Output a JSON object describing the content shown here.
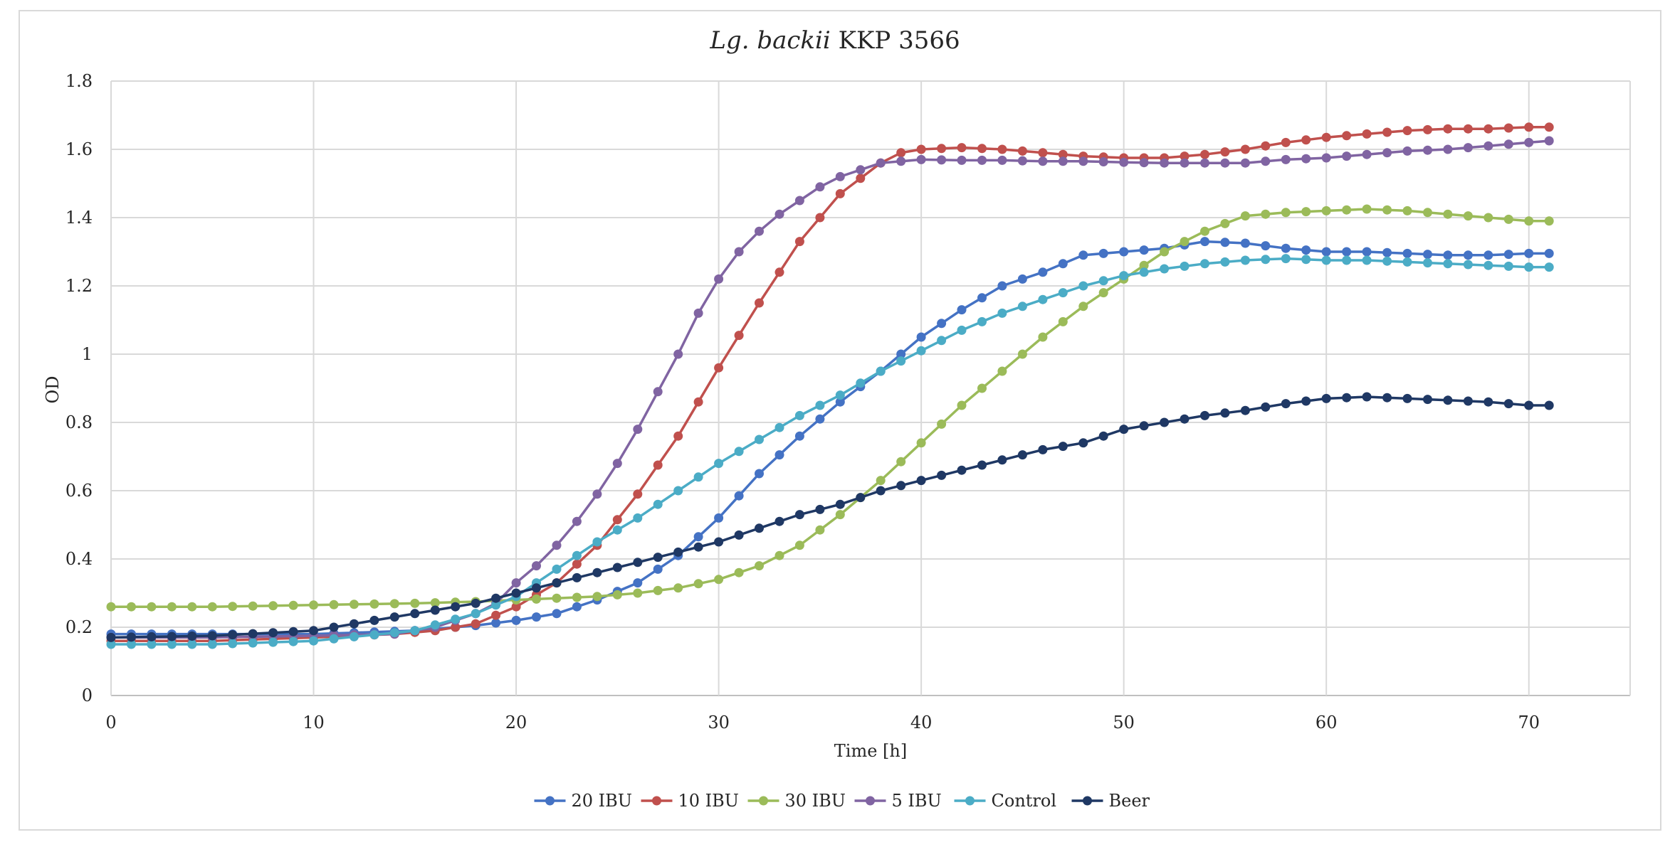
{
  "chart_data": {
    "type": "line",
    "title_italic": "Lg. backii",
    "title_rest": " KKP 3566",
    "xlabel": "Time [h]",
    "ylabel": "OD",
    "xlim": [
      0,
      75
    ],
    "ylim": [
      0,
      1.8
    ],
    "x_ticks": [
      0,
      10,
      20,
      30,
      40,
      50,
      60,
      70
    ],
    "y_ticks": [
      0,
      0.2,
      0.4,
      0.6,
      0.8,
      1,
      1.2,
      1.4,
      1.6,
      1.8
    ],
    "y_tick_labels": [
      "0",
      "0.2",
      "0.4",
      "0.6",
      "0.8",
      "1",
      "1.2",
      "1.4",
      "1.6",
      "1.8"
    ],
    "grid": true,
    "legend_position": "bottom",
    "series": [
      {
        "name": "20 IBU",
        "color": "#4472C4",
        "x": [
          0,
          5,
          10,
          15,
          18,
          20,
          22,
          24,
          26,
          28,
          30,
          32,
          34,
          36,
          38,
          40,
          42,
          44,
          46,
          48,
          50,
          52,
          54,
          56,
          58,
          60,
          62,
          64,
          66,
          68,
          70,
          71
        ],
        "y": [
          0.18,
          0.18,
          0.18,
          0.19,
          0.205,
          0.22,
          0.24,
          0.28,
          0.33,
          0.41,
          0.52,
          0.65,
          0.76,
          0.86,
          0.95,
          1.05,
          1.13,
          1.2,
          1.24,
          1.29,
          1.3,
          1.31,
          1.33,
          1.325,
          1.31,
          1.3,
          1.3,
          1.295,
          1.29,
          1.29,
          1.295,
          1.295
        ]
      },
      {
        "name": "10 IBU",
        "color": "#C0504D",
        "x": [
          0,
          5,
          10,
          14,
          16,
          18,
          20,
          22,
          24,
          26,
          28,
          30,
          32,
          34,
          36,
          38,
          39,
          40,
          42,
          44,
          46,
          48,
          50,
          52,
          54,
          56,
          58,
          60,
          62,
          64,
          66,
          68,
          70,
          71
        ],
        "y": [
          0.16,
          0.16,
          0.17,
          0.18,
          0.19,
          0.21,
          0.26,
          0.33,
          0.44,
          0.59,
          0.76,
          0.96,
          1.15,
          1.33,
          1.47,
          1.56,
          1.59,
          1.6,
          1.605,
          1.6,
          1.59,
          1.58,
          1.575,
          1.575,
          1.585,
          1.6,
          1.62,
          1.635,
          1.645,
          1.655,
          1.66,
          1.66,
          1.665,
          1.665
        ]
      },
      {
        "name": "30 IBU",
        "color": "#9BBB59",
        "x": [
          0,
          5,
          10,
          15,
          18,
          20,
          22,
          24,
          26,
          28,
          30,
          32,
          34,
          36,
          38,
          40,
          42,
          44,
          46,
          48,
          50,
          52,
          54,
          56,
          58,
          60,
          62,
          64,
          66,
          68,
          70,
          71
        ],
        "y": [
          0.26,
          0.26,
          0.265,
          0.27,
          0.275,
          0.28,
          0.285,
          0.29,
          0.3,
          0.315,
          0.34,
          0.38,
          0.44,
          0.53,
          0.63,
          0.74,
          0.85,
          0.95,
          1.05,
          1.14,
          1.22,
          1.3,
          1.36,
          1.405,
          1.415,
          1.42,
          1.425,
          1.42,
          1.41,
          1.4,
          1.39,
          1.39
        ]
      },
      {
        "name": "5 IBU",
        "color": "#8064A2",
        "x": [
          0,
          5,
          10,
          14,
          16,
          18,
          19,
          20,
          21,
          22,
          23,
          24,
          25,
          26,
          27,
          28,
          29,
          30,
          31,
          32,
          33,
          34,
          35,
          36,
          37,
          38,
          40,
          42,
          44,
          46,
          48,
          50,
          52,
          54,
          56,
          58,
          60,
          62,
          64,
          66,
          68,
          70,
          71
        ],
        "y": [
          0.17,
          0.17,
          0.175,
          0.18,
          0.2,
          0.24,
          0.27,
          0.33,
          0.38,
          0.44,
          0.51,
          0.59,
          0.68,
          0.78,
          0.89,
          1.0,
          1.12,
          1.22,
          1.3,
          1.36,
          1.41,
          1.45,
          1.49,
          1.52,
          1.54,
          1.56,
          1.57,
          1.568,
          1.568,
          1.565,
          1.565,
          1.562,
          1.56,
          1.56,
          1.56,
          1.57,
          1.575,
          1.585,
          1.595,
          1.6,
          1.61,
          1.62,
          1.625
        ]
      },
      {
        "name": "Control",
        "color": "#4BACC6",
        "x": [
          0,
          5,
          10,
          15,
          18,
          20,
          22,
          24,
          26,
          28,
          30,
          32,
          34,
          36,
          38,
          40,
          42,
          44,
          46,
          48,
          50,
          52,
          54,
          56,
          58,
          60,
          62,
          64,
          66,
          68,
          70,
          71
        ],
        "y": [
          0.15,
          0.15,
          0.16,
          0.19,
          0.24,
          0.29,
          0.37,
          0.45,
          0.52,
          0.6,
          0.68,
          0.75,
          0.82,
          0.88,
          0.95,
          1.01,
          1.07,
          1.12,
          1.16,
          1.2,
          1.23,
          1.25,
          1.265,
          1.275,
          1.28,
          1.275,
          1.275,
          1.27,
          1.265,
          1.26,
          1.255,
          1.255
        ]
      },
      {
        "name": "Beer",
        "color": "#1F3864",
        "x": [
          0,
          5,
          10,
          15,
          18,
          20,
          22,
          24,
          26,
          28,
          30,
          32,
          34,
          36,
          38,
          40,
          42,
          44,
          46,
          48,
          50,
          52,
          54,
          56,
          58,
          60,
          62,
          64,
          66,
          68,
          70,
          71
        ],
        "y": [
          0.17,
          0.175,
          0.19,
          0.24,
          0.27,
          0.3,
          0.33,
          0.36,
          0.39,
          0.42,
          0.45,
          0.49,
          0.53,
          0.56,
          0.6,
          0.63,
          0.66,
          0.69,
          0.72,
          0.74,
          0.78,
          0.8,
          0.82,
          0.835,
          0.855,
          0.87,
          0.875,
          0.87,
          0.865,
          0.86,
          0.85,
          0.85
        ]
      }
    ]
  }
}
